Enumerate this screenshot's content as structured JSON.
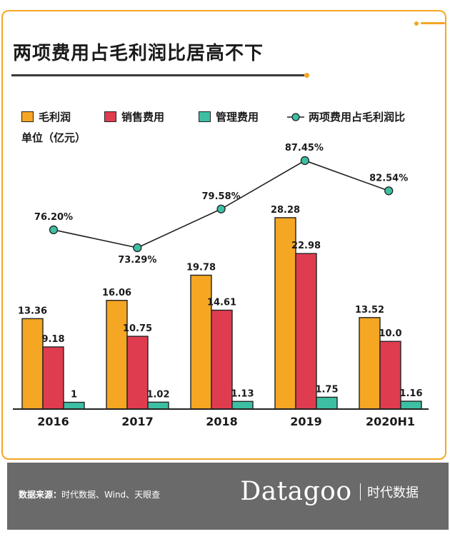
{
  "title": "两项费用占毛利润比居高不下",
  "unit_label": "单位（亿元）",
  "legend": {
    "gross_profit": "毛利润",
    "sales_expense": "销售费用",
    "admin_expense": "管理费用",
    "ratio": "两项费用占毛利润比"
  },
  "colors": {
    "gross_profit": "#f5a623",
    "sales_expense": "#e03c50",
    "admin_expense": "#3cbfa3",
    "ratio_marker": "#3cbfa3",
    "ratio_line": "#222222",
    "accent": "#f5a623"
  },
  "chart_data": {
    "type": "bar",
    "categories": [
      "2016",
      "2017",
      "2018",
      "2019",
      "2020H1"
    ],
    "series": [
      {
        "name": "毛利润",
        "values": [
          13.36,
          16.06,
          19.78,
          28.28,
          13.52
        ],
        "labels": [
          "13.36",
          "16.06",
          "19.78",
          "28.28",
          "13.52"
        ]
      },
      {
        "name": "销售费用",
        "values": [
          9.18,
          10.75,
          14.61,
          22.98,
          10.0
        ],
        "labels": [
          "9.18",
          "10.75",
          "14.61",
          "22.98",
          "10.0"
        ]
      },
      {
        "name": "管理费用",
        "values": [
          1,
          1.02,
          1.13,
          1.75,
          1.16
        ],
        "labels": [
          "1",
          "1.02",
          "1.13",
          "1.75",
          "1.16"
        ]
      }
    ],
    "line_series": {
      "name": "两项费用占毛利润比",
      "values": [
        76.2,
        73.29,
        79.58,
        87.45,
        82.54
      ],
      "labels": [
        "76.20%",
        "73.29%",
        "79.58%",
        "87.45%",
        "82.54%"
      ],
      "unit": "%"
    },
    "ylabel": "单位（亿元）",
    "legend_position": "top-left",
    "grid": false
  },
  "footer": {
    "source_label": "数据来源：",
    "source_text": "时代数据、Wind、天眼查",
    "brand_name": "Datagoo",
    "brand_cn": "时代数据"
  }
}
